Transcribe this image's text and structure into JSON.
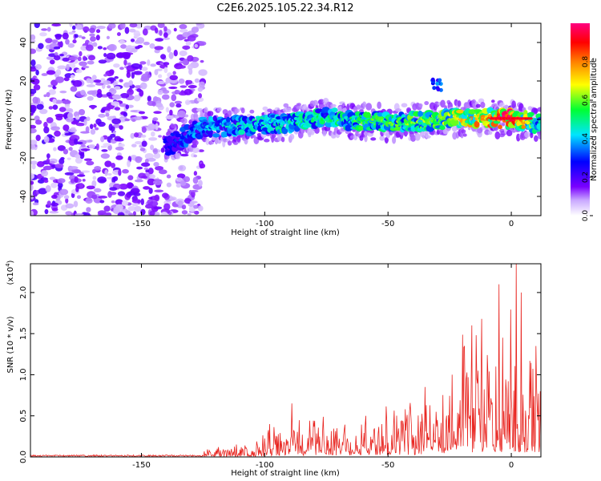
{
  "figure": {
    "title": "C2E6.2025.105.22.34.R12"
  },
  "chart_data": [
    {
      "type": "heatmap",
      "title": "C2E6.2025.105.22.34.R12",
      "xlabel": "Height of straight line (km)",
      "ylabel": "Frequency (Hz)",
      "xlim": [
        -195,
        12
      ],
      "ylim": [
        -50,
        50
      ],
      "x_ticks": [
        -150,
        -100,
        -50,
        0
      ],
      "y_ticks": [
        -40,
        -20,
        0,
        20,
        40
      ],
      "colorbar": {
        "label": "Normalized spectral amplitude",
        "range": [
          0.0,
          1.0
        ],
        "ticks": [
          0.0,
          0.2,
          0.4,
          0.6,
          0.8
        ],
        "colormap": [
          "#ffffff",
          "#7a00ff",
          "#0000ff",
          "#00e5ff",
          "#00ff33",
          "#ffff00",
          "#ff8000",
          "#ff0000",
          "#ff0080"
        ]
      },
      "description_values": {
        "noise_region_x": [
          -195,
          -125
        ],
        "signal_ridge": [
          {
            "x": -140,
            "freq": -14,
            "amp": 0.25
          },
          {
            "x": -125,
            "freq": -4,
            "amp": 0.4
          },
          {
            "x": -100,
            "freq": -3,
            "amp": 0.45
          },
          {
            "x": -75,
            "freq": 1,
            "amp": 0.5
          },
          {
            "x": -50,
            "freq": -2,
            "amp": 0.55
          },
          {
            "x": -30,
            "freq": 0,
            "amp": 0.6
          },
          {
            "x": -30,
            "freq": 18,
            "amp": 0.35
          },
          {
            "x": -10,
            "freq": 1,
            "amp": 0.8
          },
          {
            "x": 0,
            "freq": 0,
            "amp": 0.95
          },
          {
            "x": 10,
            "freq": -2,
            "amp": 0.5
          }
        ]
      }
    },
    {
      "type": "line",
      "xlabel": "Height of straight line (km)",
      "ylabel": "SNR (10 * v/v)",
      "y_multiplier": "(x10",
      "y_multiplier_exp": "4",
      "y_multiplier_close": ")",
      "xlim": [
        -195,
        12
      ],
      "ylim": [
        0,
        2.35
      ],
      "x_ticks": [
        -150,
        -100,
        -50,
        0
      ],
      "y_ticks": [
        0.0,
        0.5,
        1.0,
        1.5,
        2.0
      ],
      "y_tick_labels": [
        "0.0",
        "0.5",
        "1.0",
        "1.5",
        "2.0"
      ],
      "series": [
        {
          "color": "#e8231e",
          "envelope": [
            {
              "x": -195,
              "y": 0.02
            },
            {
              "x": -150,
              "y": 0.02
            },
            {
              "x": -130,
              "y": 0.03
            },
            {
              "x": -120,
              "y": 0.08
            },
            {
              "x": -105,
              "y": 0.12
            },
            {
              "x": -100,
              "y": 0.2
            },
            {
              "x": -90,
              "y": 0.3
            },
            {
              "x": -80,
              "y": 0.35
            },
            {
              "x": -70,
              "y": 0.35
            },
            {
              "x": -60,
              "y": 0.4
            },
            {
              "x": -50,
              "y": 0.4
            },
            {
              "x": -40,
              "y": 0.5
            },
            {
              "x": -35,
              "y": 0.7
            },
            {
              "x": -30,
              "y": 0.8
            },
            {
              "x": -25,
              "y": 0.9
            },
            {
              "x": -20,
              "y": 1.0
            },
            {
              "x": -15,
              "y": 1.1
            },
            {
              "x": -10,
              "y": 1.2
            },
            {
              "x": -5,
              "y": 1.1
            },
            {
              "x": 0,
              "y": 1.3
            },
            {
              "x": 5,
              "y": 1.1
            },
            {
              "x": 12,
              "y": 1.0
            }
          ],
          "peaks": [
            {
              "x": -98,
              "y": 0.4
            },
            {
              "x": -89,
              "y": 0.65
            },
            {
              "x": -59,
              "y": 0.5
            },
            {
              "x": -43,
              "y": 0.58
            },
            {
              "x": -35,
              "y": 0.85
            },
            {
              "x": -24,
              "y": 1.0
            },
            {
              "x": -19,
              "y": 1.35
            },
            {
              "x": -16,
              "y": 1.6
            },
            {
              "x": -12,
              "y": 1.68
            },
            {
              "x": -5,
              "y": 2.1
            },
            {
              "x": 2,
              "y": 2.35
            },
            {
              "x": 4,
              "y": 2.0
            },
            {
              "x": 10,
              "y": 1.35
            }
          ]
        }
      ]
    }
  ]
}
